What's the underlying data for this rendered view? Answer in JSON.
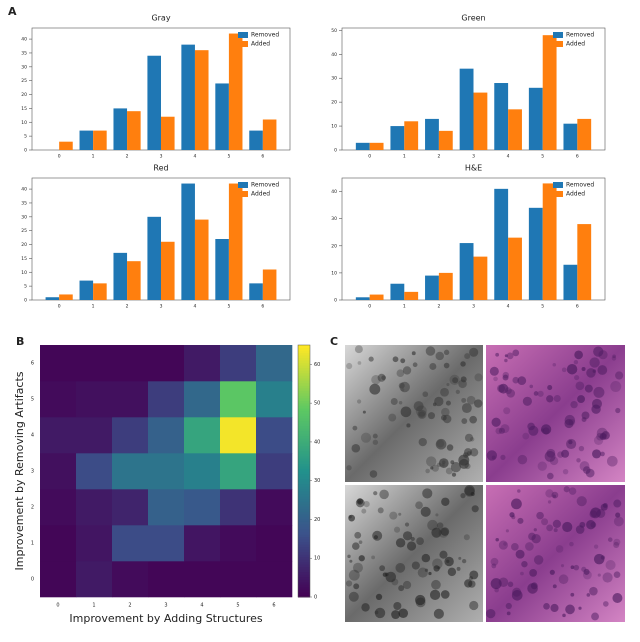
{
  "panel_labels": [
    "A",
    "B",
    "C"
  ],
  "chart_data": [
    {
      "type": "bar",
      "title": "Gray",
      "categories": [
        "0",
        "1",
        "2",
        "3",
        "4",
        "5",
        "6"
      ],
      "series": [
        {
          "name": "Removed",
          "color": "#1f77b4",
          "values": [
            0,
            7,
            15,
            34,
            38,
            24,
            7
          ]
        },
        {
          "name": "Added",
          "color": "#ff7f0e",
          "values": [
            3,
            7,
            14,
            12,
            36,
            42,
            11
          ]
        }
      ],
      "ylim": [
        0,
        44
      ],
      "yticks": [
        0,
        5,
        10,
        15,
        20,
        25,
        30,
        35,
        40
      ],
      "legend": "upper right"
    },
    {
      "type": "bar",
      "title": "Green",
      "categories": [
        "0",
        "1",
        "2",
        "3",
        "4",
        "5",
        "6"
      ],
      "series": [
        {
          "name": "Removed",
          "color": "#1f77b4",
          "values": [
            3,
            10,
            13,
            34,
            28,
            26,
            11
          ]
        },
        {
          "name": "Added",
          "color": "#ff7f0e",
          "values": [
            3,
            12,
            8,
            24,
            17,
            48,
            13
          ]
        }
      ],
      "ylim": [
        0,
        51
      ],
      "yticks": [
        0,
        10,
        20,
        30,
        40,
        50
      ],
      "legend": "upper right"
    },
    {
      "type": "bar",
      "title": "Red",
      "categories": [
        "0",
        "1",
        "2",
        "3",
        "4",
        "5",
        "6"
      ],
      "series": [
        {
          "name": "Removed",
          "color": "#1f77b4",
          "values": [
            1,
            7,
            17,
            30,
            42,
            22,
            6
          ]
        },
        {
          "name": "Added",
          "color": "#ff7f0e",
          "values": [
            2,
            6,
            14,
            21,
            29,
            42,
            11
          ]
        }
      ],
      "ylim": [
        0,
        44
      ],
      "yticks": [
        0,
        5,
        10,
        15,
        20,
        25,
        30,
        35,
        40
      ],
      "legend": "upper right"
    },
    {
      "type": "bar",
      "title": "H&E",
      "categories": [
        "0",
        "1",
        "2",
        "3",
        "4",
        "5",
        "6"
      ],
      "series": [
        {
          "name": "Removed",
          "color": "#1f77b4",
          "values": [
            1,
            6,
            9,
            21,
            41,
            34,
            13
          ]
        },
        {
          "name": "Added",
          "color": "#ff7f0e",
          "values": [
            2,
            3,
            10,
            16,
            23,
            43,
            28
          ]
        }
      ],
      "ylim": [
        0,
        45
      ],
      "yticks": [
        0,
        10,
        20,
        30,
        40
      ],
      "legend": "upper right"
    },
    {
      "type": "heatmap",
      "x_label": "Improvement by Adding Structures",
      "y_label": "Improvement by Removing Artifacts",
      "x": [
        "0",
        "1",
        "2",
        "3",
        "4",
        "5",
        "6"
      ],
      "y": [
        "0",
        "1",
        "2",
        "3",
        "4",
        "5",
        "6"
      ],
      "z": [
        [
          1,
          5,
          2,
          1,
          1,
          1,
          1
        ],
        [
          1,
          4,
          15,
          15,
          4,
          2,
          1
        ],
        [
          2,
          5,
          7,
          20,
          18,
          10,
          2
        ],
        [
          3,
          15,
          25,
          25,
          28,
          38,
          12
        ],
        [
          5,
          5,
          12,
          20,
          38,
          64,
          15
        ],
        [
          2,
          3,
          3,
          12,
          22,
          48,
          28
        ],
        [
          1,
          1,
          1,
          1,
          5,
          12,
          22
        ]
      ],
      "zlim": [
        0,
        65
      ],
      "zticks": [
        0,
        10,
        20,
        30,
        40,
        50,
        60
      ],
      "colormap": "viridis"
    }
  ]
}
